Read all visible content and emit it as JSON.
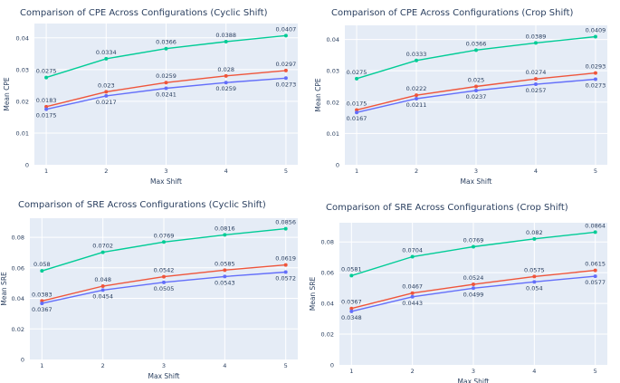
{
  "chart_data": [
    {
      "type": "line",
      "title": "Comparison of CPE Across Configurations (Cyclic Shift)",
      "xlabel": "Max Shift",
      "ylabel": "Mean CPE",
      "categories": [
        1,
        2,
        3,
        4,
        5
      ],
      "ylim": [
        0,
        0.0445
      ],
      "yticks": [
        "0",
        "0.01",
        "0.02",
        "0.03",
        "0.04"
      ],
      "grid": true,
      "series": [
        {
          "color": "#00cc96",
          "values": [
            0.0275,
            0.0334,
            0.0366,
            0.0388,
            0.0407
          ],
          "labels": [
            "0.0275",
            "0.0334",
            "0.0366",
            "0.0388",
            "0.0407"
          ]
        },
        {
          "color": "#ef553b",
          "values": [
            0.0183,
            0.023,
            0.0259,
            0.028,
            0.0297
          ],
          "labels": [
            "0.0183",
            "0.023",
            "0.0259",
            "0.028",
            "0.0297"
          ]
        },
        {
          "color": "#636efa",
          "values": [
            0.0175,
            0.0217,
            0.0241,
            0.0259,
            0.0273
          ],
          "labels": [
            "0.0175",
            "0.0217",
            "0.0241",
            "0.0259",
            "0.0273"
          ]
        }
      ]
    },
    {
      "type": "line",
      "title": "Comparison of CPE Across Configurations (Crop Shift)",
      "xlabel": "Max Shift",
      "ylabel": "Mean CPE",
      "categories": [
        1,
        2,
        3,
        4,
        5
      ],
      "ylim": [
        0,
        0.0445
      ],
      "yticks": [
        "0",
        "0.01",
        "0.02",
        "0.03",
        "0.04"
      ],
      "grid": true,
      "series": [
        {
          "color": "#00cc96",
          "values": [
            0.0275,
            0.0333,
            0.0366,
            0.0389,
            0.0409
          ],
          "labels": [
            "0.0275",
            "0.0333",
            "0.0366",
            "0.0389",
            "0.0409"
          ]
        },
        {
          "color": "#ef553b",
          "values": [
            0.0175,
            0.0222,
            0.025,
            0.0274,
            0.0293
          ],
          "labels": [
            "0.0175",
            "0.0222",
            "0.025",
            "0.0274",
            "0.0293"
          ]
        },
        {
          "color": "#636efa",
          "values": [
            0.0167,
            0.0211,
            0.0237,
            0.0257,
            0.0273
          ],
          "labels": [
            "0.0167",
            "0.0211",
            "0.0237",
            "0.0257",
            "0.0273"
          ]
        }
      ]
    },
    {
      "type": "line",
      "title": "Comparison of SRE Across Configurations (Cyclic Shift)",
      "xlabel": "Max Shift",
      "ylabel": "Mean SRE",
      "categories": [
        1,
        2,
        3,
        4,
        5
      ],
      "ylim": [
        0,
        0.0925
      ],
      "yticks": [
        "0",
        "0.02",
        "0.04",
        "0.06",
        "0.08"
      ],
      "grid": true,
      "series": [
        {
          "color": "#00cc96",
          "values": [
            0.058,
            0.0702,
            0.0769,
            0.0816,
            0.0856
          ],
          "labels": [
            "0.058",
            "0.0702",
            "0.0769",
            "0.0816",
            "0.0856"
          ]
        },
        {
          "color": "#ef553b",
          "values": [
            0.0383,
            0.048,
            0.0542,
            0.0585,
            0.0619
          ],
          "labels": [
            "0.0383",
            "0.048",
            "0.0542",
            "0.0585",
            "0.0619"
          ]
        },
        {
          "color": "#636efa",
          "values": [
            0.0367,
            0.0454,
            0.0505,
            0.0543,
            0.0572
          ],
          "labels": [
            "0.0367",
            "0.0454",
            "0.0505",
            "0.0543",
            "0.0572"
          ]
        }
      ]
    },
    {
      "type": "line",
      "title": "Comparison of SRE Across Configurations (Crop Shift)",
      "xlabel": "Max Shift",
      "ylabel": "Mean SRE",
      "categories": [
        1,
        2,
        3,
        4,
        5
      ],
      "ylim": [
        0,
        0.0925
      ],
      "yticks": [
        "0",
        "0.02",
        "0.04",
        "0.06",
        "0.08"
      ],
      "grid": true,
      "series": [
        {
          "color": "#00cc96",
          "values": [
            0.0581,
            0.0704,
            0.0769,
            0.082,
            0.0864
          ],
          "labels": [
            "0.0581",
            "0.0704",
            "0.0769",
            "0.082",
            "0.0864"
          ]
        },
        {
          "color": "#ef553b",
          "values": [
            0.0367,
            0.0467,
            0.0524,
            0.0575,
            0.0615
          ],
          "labels": [
            "0.0367",
            "0.0467",
            "0.0524",
            "0.0575",
            "0.0615"
          ]
        },
        {
          "color": "#636efa",
          "values": [
            0.0348,
            0.0443,
            0.0499,
            0.054,
            0.0577
          ],
          "labels": [
            "0.0348",
            "0.0443",
            "0.0499",
            "0.054",
            "0.0577"
          ]
        }
      ]
    }
  ]
}
